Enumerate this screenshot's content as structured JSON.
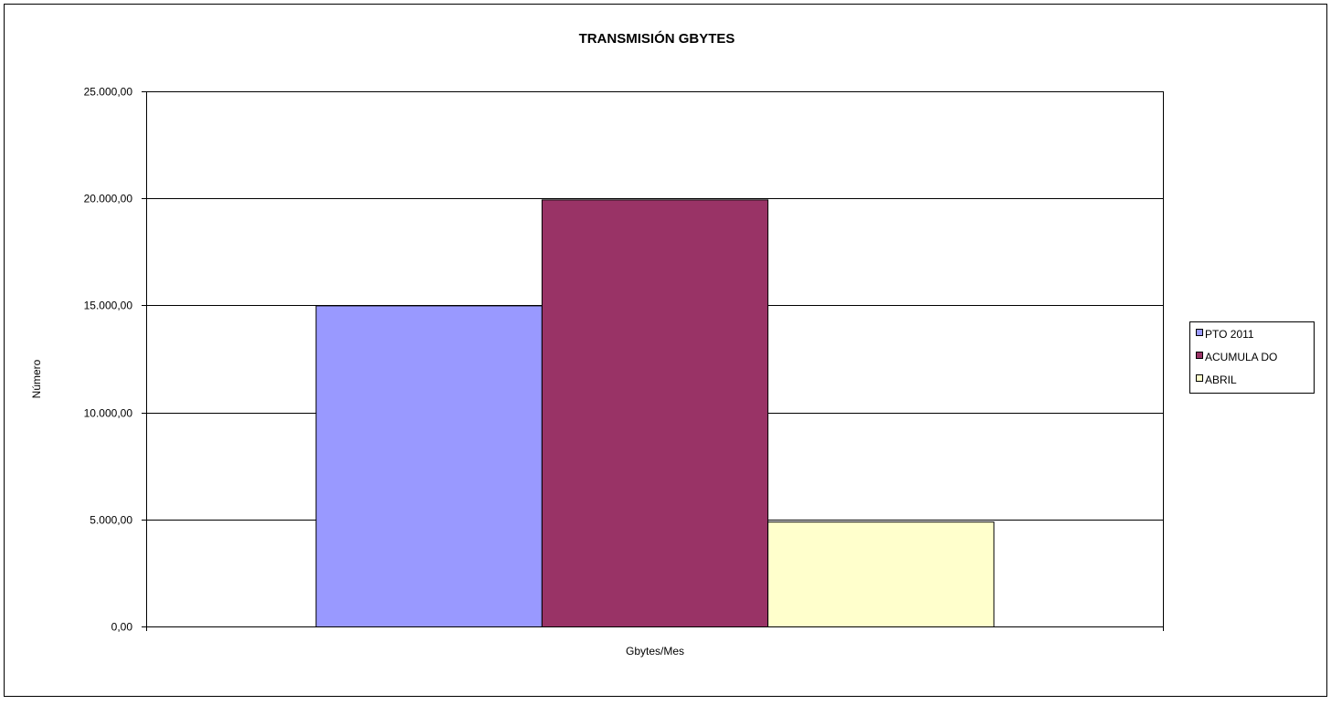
{
  "chart_data": {
    "type": "bar",
    "title": "TRANSMISIÓN GBYTES",
    "xlabel": "Gbytes/Mes",
    "ylabel": "Número",
    "categories": [
      "Gbytes/Mes"
    ],
    "ylim": [
      0,
      25000
    ],
    "ytick_values": [
      0,
      5000,
      10000,
      15000,
      20000,
      25000
    ],
    "ytick_labels": [
      "0,00",
      "5.000,00",
      "10.000,00",
      "15.000,00",
      "20.000,00",
      "25.000,00"
    ],
    "grid": true,
    "legend_position": "right",
    "series": [
      {
        "name": "PTO  2011",
        "values": [
          15000
        ],
        "color": "#9999FF"
      },
      {
        "name": "ACUMULA DO",
        "values": [
          19950
        ],
        "color": "#993366"
      },
      {
        "name": "ABRIL",
        "values": [
          4900
        ],
        "color": "#FFFFCC"
      }
    ]
  }
}
